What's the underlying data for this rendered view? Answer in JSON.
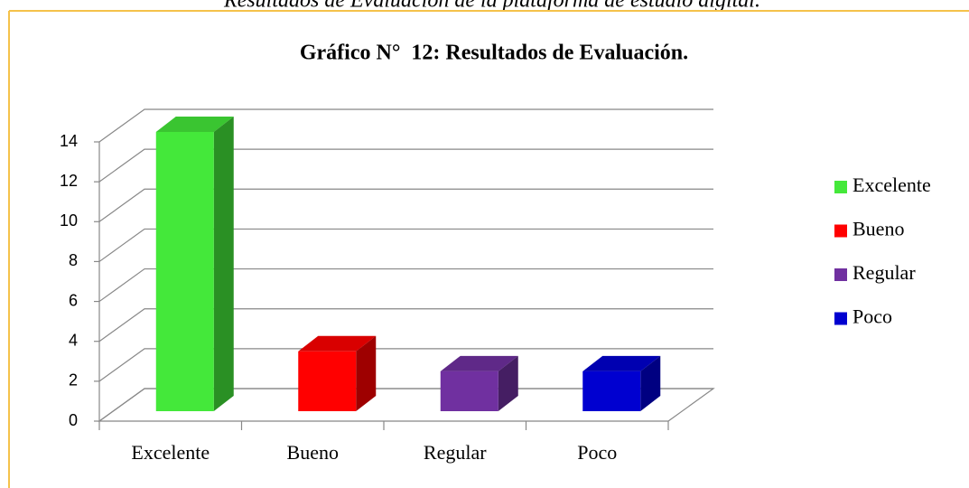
{
  "caption": "Resultados de Evaluación de la plataforma de estudio digital.",
  "chart_data": {
    "type": "bar3d",
    "title": "Gráfico N°  12: Resultados de Evaluación.",
    "categories": [
      "Excelente",
      "Bueno",
      "Regular",
      "Poco"
    ],
    "values": [
      14,
      3,
      2,
      2
    ],
    "colors": [
      "#44e83a",
      "#ff0000",
      "#7030a0",
      "#0000d0"
    ],
    "ylim": [
      0,
      14
    ],
    "yticks": [
      0,
      2,
      4,
      6,
      8,
      10,
      12,
      14
    ],
    "grid": true,
    "legend": "right"
  }
}
